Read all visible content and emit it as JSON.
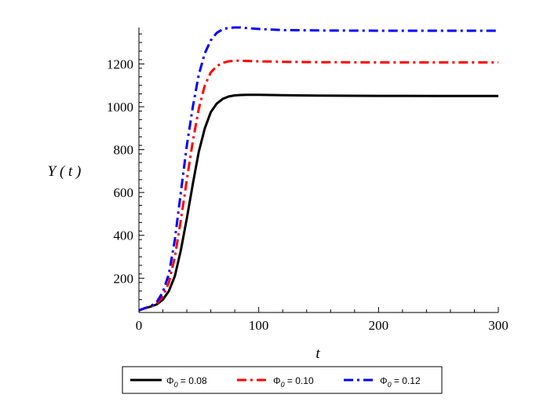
{
  "chart_data": {
    "type": "line",
    "title": "",
    "xlabel": "t",
    "ylabel": "Y ( t )",
    "xlim": [
      0,
      300
    ],
    "ylim": [
      40,
      1370
    ],
    "xticks": [
      0,
      100,
      200,
      300
    ],
    "yticks": [
      200,
      400,
      600,
      800,
      1000,
      1200
    ],
    "xtick_labels": [
      "0",
      "100",
      "200",
      "300"
    ],
    "ytick_labels": [
      "200",
      "400",
      "600",
      "800",
      "1000",
      "1200"
    ],
    "grid": false,
    "legend": {
      "placement": "bottom",
      "entries": [
        {
          "symbol": "Φ",
          "sub": "0",
          "rest": " = 0.08"
        },
        {
          "symbol": "Φ",
          "sub": "0",
          "rest": " = 0.10"
        },
        {
          "symbol": "Φ",
          "sub": "0",
          "rest": " = 0.12"
        }
      ]
    },
    "series": [
      {
        "color": "#000000",
        "dash": "solid",
        "x": [
          0,
          5,
          10,
          15,
          20,
          25,
          30,
          35,
          40,
          45,
          50,
          55,
          60,
          65,
          70,
          75,
          80,
          85,
          90,
          100,
          120,
          150,
          200,
          250,
          300
        ],
        "y": [
          50,
          60,
          68,
          78,
          100,
          140,
          210,
          330,
          480,
          640,
          790,
          900,
          975,
          1015,
          1037,
          1048,
          1053,
          1055,
          1056,
          1056,
          1054,
          1052,
          1051,
          1050,
          1050
        ]
      },
      {
        "color": "#ff0000",
        "dash": "dashdot",
        "x": [
          0,
          5,
          10,
          15,
          20,
          25,
          30,
          35,
          40,
          45,
          50,
          55,
          60,
          65,
          70,
          75,
          80,
          85,
          90,
          100,
          120,
          150,
          200,
          250,
          300
        ],
        "y": [
          50,
          60,
          68,
          80,
          115,
          180,
          300,
          470,
          660,
          840,
          990,
          1100,
          1160,
          1190,
          1205,
          1212,
          1215,
          1215,
          1214,
          1212,
          1210,
          1208,
          1207,
          1207,
          1207
        ]
      },
      {
        "color": "#0000ff",
        "dash": "dashdot",
        "x": [
          0,
          5,
          10,
          15,
          20,
          25,
          30,
          35,
          40,
          45,
          50,
          55,
          60,
          65,
          70,
          75,
          80,
          85,
          90,
          100,
          120,
          150,
          200,
          250,
          300
        ],
        "y": [
          50,
          60,
          70,
          90,
          135,
          220,
          380,
          600,
          820,
          1000,
          1150,
          1250,
          1310,
          1345,
          1362,
          1368,
          1370,
          1370,
          1367,
          1363,
          1358,
          1356,
          1355,
          1355,
          1355
        ]
      }
    ]
  }
}
